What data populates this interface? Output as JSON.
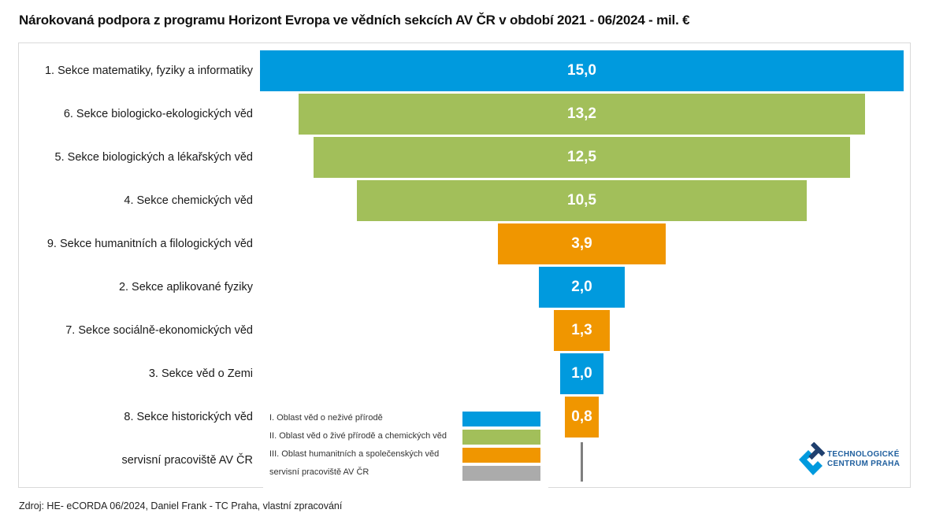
{
  "chart_data": {
    "type": "bar",
    "subtype": "funnel",
    "title": "Nárokovaná podpora z programu Horizont Evropa ve vědních sekcích AV ČR v období 2021 - 06/2024 - mil. €",
    "xlabel": "",
    "ylabel": "",
    "unit": "mil. €",
    "categories": [
      "1. Sekce matematiky, fyziky a informatiky",
      "6. Sekce biologicko-ekologických věd",
      "5. Sekce biologických a lékařských věd",
      "4. Sekce chemických věd",
      "9. Sekce humanitních a filologických věd",
      "2. Sekce aplikované fyziky",
      "7. Sekce sociálně-ekonomických věd",
      "3. Sekce věd o Zemi",
      "8. Sekce historických věd",
      "servisní pracoviště AV ČR"
    ],
    "values": [
      15.0,
      13.2,
      12.5,
      10.5,
      3.9,
      2.0,
      1.3,
      1.0,
      0.8,
      0.0
    ],
    "value_labels": [
      "15,0",
      "13,2",
      "12,5",
      "10,5",
      "3,9",
      "2,0",
      "1,3",
      "1,0",
      "0,8",
      ""
    ],
    "groups": [
      "I",
      "II",
      "II",
      "II",
      "III",
      "I",
      "III",
      "I",
      "III",
      "S"
    ],
    "xlim": [
      0,
      15
    ],
    "grid": false,
    "legend_position": "bottom-center",
    "legend": [
      {
        "key": "I",
        "label": "I. Oblast věd o neživé přírodě",
        "color": "#009ADE"
      },
      {
        "key": "II",
        "label": "II. Oblast věd o živé přírodě a chemických věd",
        "color": "#A2BF5A"
      },
      {
        "key": "III",
        "label": "III. Oblast humanitních a společenských věd",
        "color": "#F09600"
      },
      {
        "key": "S",
        "label": "servisní pracoviště AV ČR",
        "color": "#ABABAB"
      }
    ]
  },
  "logo": {
    "line1": "TECHNOLOGICKÉ",
    "line2": "CENTRUM PRAHA",
    "color_dark": "#1F3F6E",
    "color_light": "#009ADE"
  },
  "source": "Zdroj: HE- eCORDA 06/2024, Daniel Frank - TC Praha, vlastní zpracování"
}
